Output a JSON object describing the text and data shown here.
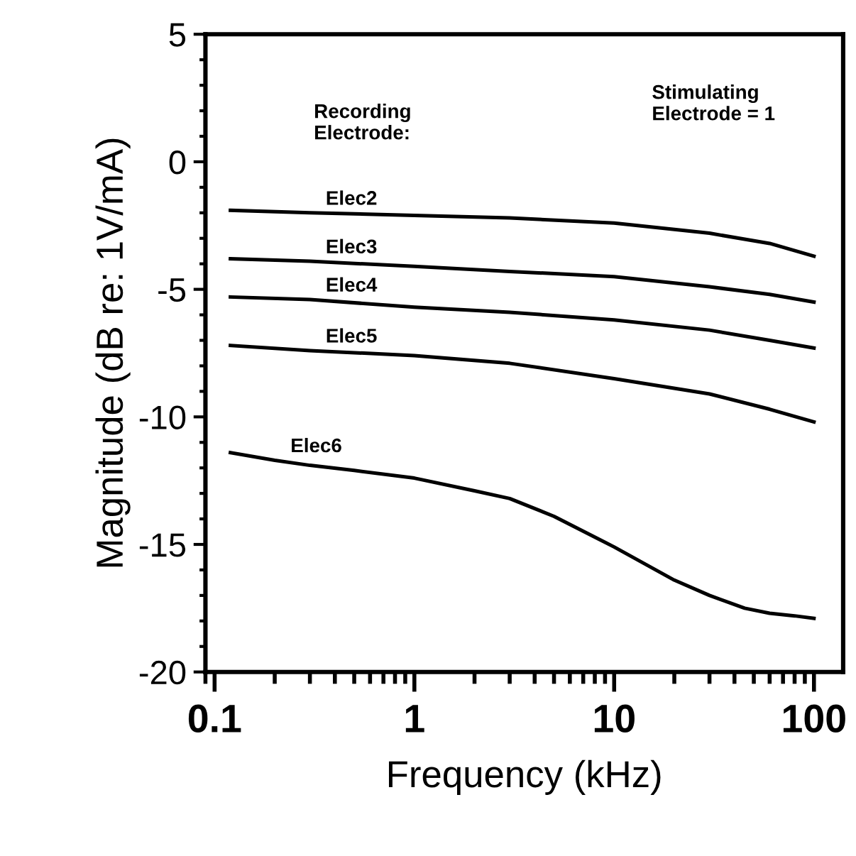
{
  "chart_data": {
    "type": "line",
    "xlabel": "Frequency (kHz)",
    "ylabel": "Magnitude (dB re: 1V/mA)",
    "log": "x",
    "xlim": [
      0.09,
      140
    ],
    "xticks": [
      0.1,
      1,
      10,
      100
    ],
    "ylim": [
      -20,
      5
    ],
    "yticks": [
      5,
      0,
      -5,
      -10,
      -15,
      -20
    ],
    "grid": false,
    "legend": false,
    "marker": "none",
    "line_style": "solid",
    "annotations": [
      "Recording\nElectrode:",
      "Stimulating\nElectrode = 1"
    ],
    "series": [
      {
        "name": "Elec2",
        "color": "#000000",
        "x": [
          0.12,
          0.3,
          1,
          3,
          10,
          30,
          60,
          100
        ],
        "values": [
          -1.9,
          -2.0,
          -2.1,
          -2.2,
          -2.4,
          -2.8,
          -3.2,
          -3.7
        ]
      },
      {
        "name": "Elec3",
        "color": "#000000",
        "x": [
          0.12,
          0.3,
          1,
          3,
          10,
          30,
          60,
          100
        ],
        "values": [
          -3.8,
          -3.9,
          -4.1,
          -4.3,
          -4.5,
          -4.9,
          -5.2,
          -5.5
        ]
      },
      {
        "name": "Elec4",
        "color": "#000000",
        "x": [
          0.12,
          0.3,
          1,
          3,
          10,
          30,
          60,
          100
        ],
        "values": [
          -5.3,
          -5.4,
          -5.7,
          -5.9,
          -6.2,
          -6.6,
          -7.0,
          -7.3
        ]
      },
      {
        "name": "Elec5",
        "color": "#000000",
        "x": [
          0.12,
          0.3,
          1,
          3,
          10,
          30,
          60,
          100
        ],
        "values": [
          -7.2,
          -7.4,
          -7.6,
          -7.9,
          -8.5,
          -9.1,
          -9.7,
          -10.2
        ]
      },
      {
        "name": "Elec6",
        "color": "#000000",
        "x": [
          0.12,
          0.2,
          0.3,
          0.5,
          1,
          2,
          3,
          5,
          10,
          20,
          30,
          45,
          60,
          80,
          100
        ],
        "values": [
          -11.4,
          -11.7,
          -11.9,
          -12.1,
          -12.4,
          -12.9,
          -13.2,
          -13.9,
          -15.1,
          -16.4,
          -17.0,
          -17.5,
          -17.7,
          -17.8,
          -17.9
        ]
      }
    ]
  }
}
